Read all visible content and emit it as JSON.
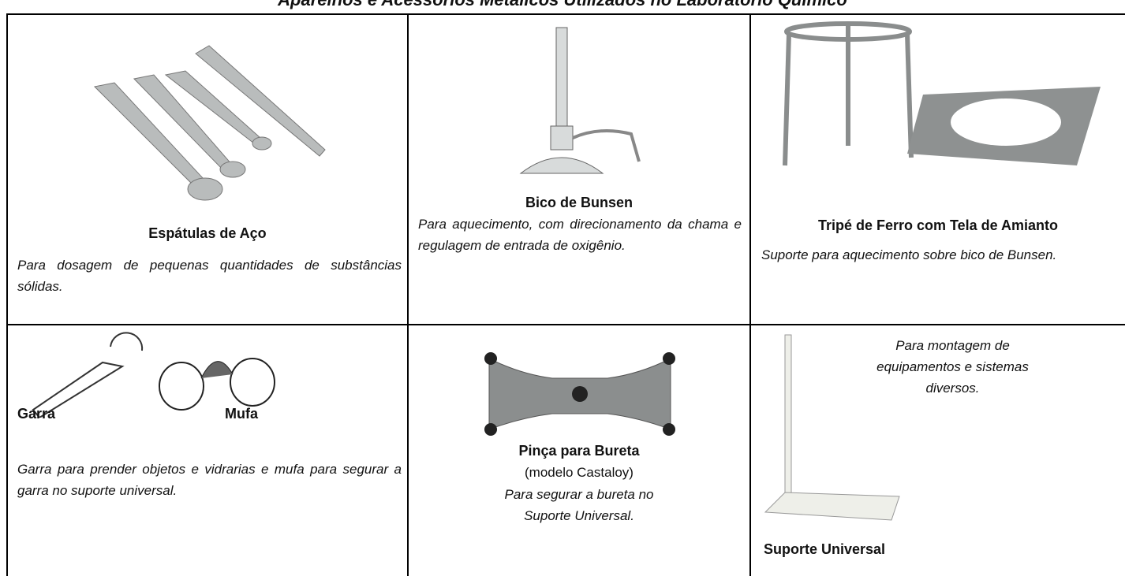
{
  "title": "Aparelhos e Acessórios Metálicos Utilizados no Laboratório Químico",
  "cells": [
    {
      "name": "Espátulas de Aço",
      "description": "Para dosagem de pequenas quantidades de substâncias sólidas."
    },
    {
      "name": "Bico de Bunsen",
      "description": "Para aquecimento, com direcionamento da chama e regulagem de entrada de oxigênio."
    },
    {
      "name": "Tripé de Ferro com Tela de Amianto",
      "description": "Suporte para aquecimento sobre bico de Bunsen."
    },
    {
      "labels": [
        "Garra",
        "Mufa"
      ],
      "description": "Garra para prender objetos e vidrarias e mufa para segurar a garra no suporte universal."
    },
    {
      "name": "Pinça para Bureta",
      "note": "(modelo Castaloy)",
      "description": "Para segurar a bureta no Suporte Universal."
    },
    {
      "name": "Suporte Universal",
      "description": "Para montagem de equipamentos e sistemas diversos."
    }
  ]
}
